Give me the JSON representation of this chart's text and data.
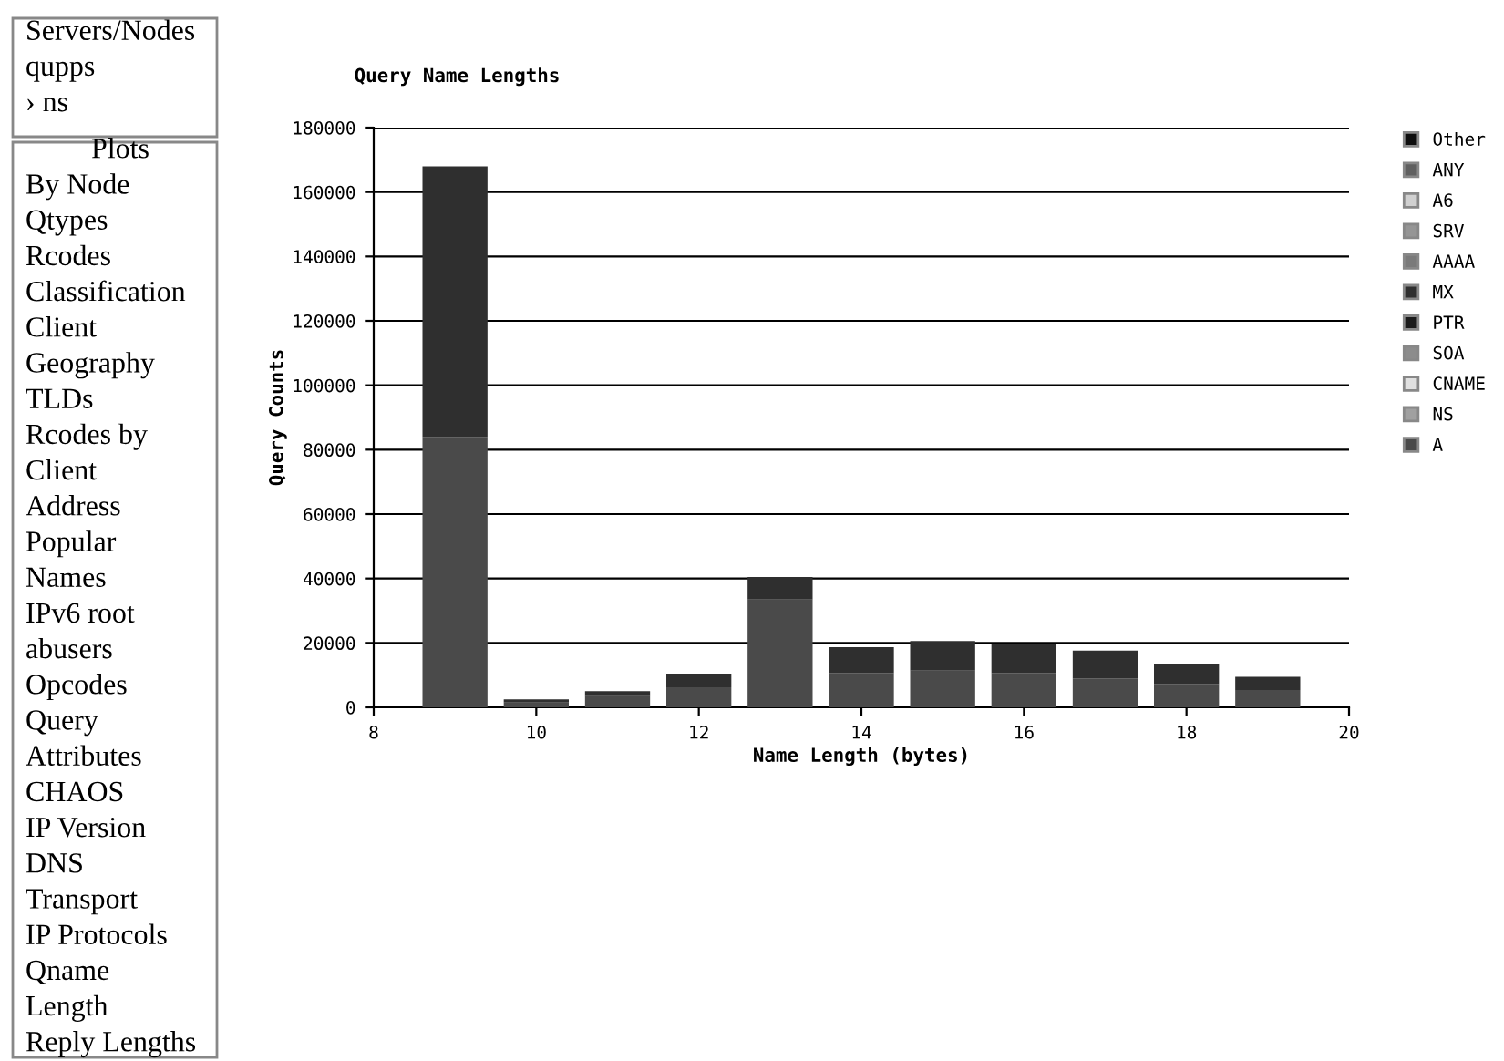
{
  "chart_data": {
    "type": "bar",
    "title": "Query Name Lengths",
    "xlabel": "Name Length (bytes)",
    "ylabel": "Query Counts",
    "x": [
      9,
      10,
      11,
      12,
      13,
      14,
      15,
      16,
      17,
      18,
      19
    ],
    "stacked": true,
    "series": [
      {
        "name": "A",
        "color": "#4a4a4a",
        "values": [
          84000,
          1500,
          3500,
          6200,
          33500,
          10700,
          11400,
          10700,
          9000,
          7300,
          5400
        ]
      },
      {
        "name": "NS",
        "color": "#a0a0a0",
        "values": [
          0,
          0,
          0,
          0,
          0,
          0,
          0,
          0,
          0,
          0,
          0
        ]
      },
      {
        "name": "CNAME",
        "color": "#e0e0e0",
        "values": [
          0,
          0,
          0,
          0,
          0,
          0,
          0,
          0,
          0,
          0,
          0
        ]
      },
      {
        "name": "SOA",
        "color": "#8c8c8c",
        "values": [
          0,
          0,
          0,
          0,
          0,
          0,
          0,
          0,
          0,
          0,
          0
        ]
      },
      {
        "name": "PTR",
        "color": "#1a1a1a",
        "values": [
          0,
          0,
          0,
          0,
          0,
          0,
          0,
          0,
          0,
          0,
          0
        ]
      },
      {
        "name": "MX",
        "color": "#2f2f2f",
        "values": [
          84000,
          1000,
          1500,
          4300,
          7000,
          8000,
          9200,
          9000,
          8600,
          6200,
          4100
        ]
      },
      {
        "name": "AAAA",
        "color": "#7a7a7a",
        "values": [
          0,
          0,
          0,
          0,
          0,
          0,
          0,
          0,
          0,
          0,
          0
        ]
      },
      {
        "name": "SRV",
        "color": "#959595",
        "values": [
          0,
          0,
          0,
          0,
          0,
          0,
          0,
          0,
          0,
          0,
          0
        ]
      },
      {
        "name": "A6",
        "color": "#d0d0d0",
        "values": [
          0,
          0,
          0,
          0,
          0,
          0,
          0,
          0,
          0,
          0,
          0
        ]
      },
      {
        "name": "ANY",
        "color": "#606060",
        "values": [
          0,
          0,
          0,
          0,
          0,
          0,
          0,
          0,
          0,
          0,
          0
        ]
      },
      {
        "name": "Other",
        "color": "#0d0d0d",
        "values": [
          0,
          0,
          0,
          0,
          0,
          0,
          0,
          0,
          0,
          0,
          0
        ]
      }
    ],
    "xlim": [
      8,
      20
    ],
    "xticks": [
      8,
      10,
      12,
      14,
      16,
      18,
      20
    ],
    "ylim": [
      0,
      180000
    ],
    "yticks": [
      0,
      20000,
      40000,
      60000,
      80000,
      100000,
      120000,
      140000,
      160000,
      180000
    ],
    "grid": "y",
    "legend": "right",
    "annotations": [
      "Servers/Nodes",
      "qupps",
      "› ns",
      "Plots",
      "By Node",
      "Qtypes",
      "Rcodes",
      "Classification",
      "Client",
      "Geography",
      "TLDs",
      "Rcodes by",
      "Client",
      "Address",
      "Popular",
      "Names",
      "IPv6 root",
      "abusers",
      "Opcodes",
      "Query",
      "Attributes",
      "CHAOS",
      "IP Version",
      "DNS",
      "Transport",
      "IP Protocols",
      "Qname",
      "Length",
      "Reply Lengths"
    ]
  }
}
